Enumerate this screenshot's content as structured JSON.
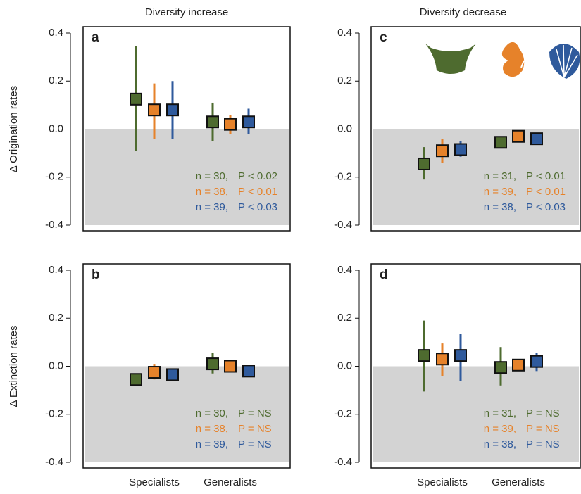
{
  "chart_data": [
    {
      "type": "errorbar",
      "label": "a",
      "title": "Diversity increase",
      "y_label": "Δ Origination rates",
      "ylim": [
        -0.4,
        0.4
      ],
      "yticks": [
        {
          "value": -0.4,
          "label": "-0.4"
        },
        {
          "value": -0.2,
          "label": "-0.2"
        },
        {
          "value": 0,
          "label": "0.0"
        },
        0.2,
        0.4
      ],
      "shade_below_zero": true,
      "series": [
        {
          "color": "#4e6b2f",
          "values": [
            0.125,
            0.03
          ],
          "lower": [
            -0.09,
            -0.05
          ],
          "upper": [
            0.345,
            0.11
          ],
          "annotation_n": "n = 30,",
          "annotation_p": "P < 0.02"
        },
        {
          "color": "#e6822a",
          "values": [
            0.08,
            0.02
          ],
          "lower": [
            -0.04,
            -0.02
          ],
          "upper": [
            0.19,
            0.06
          ],
          "annotation_n": "n = 38,",
          "annotation_p": "P < 0.01"
        },
        {
          "color": "#2f5a9c",
          "values": [
            0.08,
            0.03
          ],
          "lower": [
            -0.04,
            -0.02
          ],
          "upper": [
            0.2,
            0.085
          ],
          "annotation_n": "n = 39,",
          "annotation_p": "P < 0.03"
        }
      ]
    },
    {
      "type": "errorbar",
      "label": "b",
      "y_label": "Δ Extinction rates",
      "categories": [
        "Specialists",
        "Generalists"
      ],
      "ylim": [
        -0.4,
        0.4
      ],
      "yticks": [
        {
          "value": -0.4,
          "label": "-0.4"
        },
        {
          "value": -0.2,
          "label": "-0.2"
        },
        {
          "value": 0,
          "label": "0.0"
        },
        0.2,
        0.4
      ],
      "shade_below_zero": true,
      "series": [
        {
          "color": "#4e6b2f",
          "values": [
            -0.055,
            0.01
          ],
          "lower": [
            -0.065,
            -0.03
          ],
          "upper": [
            -0.045,
            0.055
          ],
          "annotation_n": "n = 30,",
          "annotation_p": "P = NS"
        },
        {
          "color": "#e6822a",
          "values": [
            -0.025,
            0.0
          ],
          "lower": [
            -0.055,
            -0.02
          ],
          "upper": [
            0.01,
            0.02
          ],
          "annotation_n": "n = 38,",
          "annotation_p": "P = NS"
        },
        {
          "color": "#2f5a9c",
          "values": [
            -0.035,
            -0.02
          ],
          "lower": [
            -0.06,
            -0.03
          ],
          "upper": [
            -0.015,
            -0.01
          ],
          "annotation_n": "n = 39,",
          "annotation_p": "P = NS"
        }
      ]
    },
    {
      "type": "errorbar",
      "label": "c",
      "title": "Diversity decrease",
      "ylim": [
        -0.4,
        0.4
      ],
      "yticks": [
        {
          "value": -0.4,
          "label": "-0.4"
        },
        {
          "value": -0.2,
          "label": "-0.2"
        },
        {
          "value": 0,
          "label": "0.0"
        },
        0.2,
        0.4
      ],
      "shade_below_zero": true,
      "series": [
        {
          "color": "#4e6b2f",
          "values": [
            -0.145,
            -0.055
          ],
          "lower": [
            -0.21,
            -0.065
          ],
          "upper": [
            -0.075,
            -0.045
          ],
          "annotation_n": "n = 31,",
          "annotation_p": "P < 0.01"
        },
        {
          "color": "#e6822a",
          "values": [
            -0.09,
            -0.03
          ],
          "lower": [
            -0.14,
            -0.04
          ],
          "upper": [
            -0.04,
            -0.02
          ],
          "annotation_n": "n = 39,",
          "annotation_p": "P < 0.01"
        },
        {
          "color": "#2f5a9c",
          "values": [
            -0.085,
            -0.04
          ],
          "lower": [
            -0.115,
            -0.05
          ],
          "upper": [
            -0.05,
            -0.03
          ],
          "annotation_n": "n = 38,",
          "annotation_p": "P < 0.03"
        }
      ]
    },
    {
      "type": "errorbar",
      "label": "d",
      "categories": [
        "Specialists",
        "Generalists"
      ],
      "ylim": [
        -0.4,
        0.4
      ],
      "yticks": [
        {
          "value": -0.4,
          "label": "-0.4"
        },
        {
          "value": -0.2,
          "label": "-0.2"
        },
        {
          "value": 0,
          "label": "0.0"
        },
        0.2,
        0.4
      ],
      "shade_below_zero": true,
      "series": [
        {
          "color": "#4e6b2f",
          "values": [
            0.045,
            -0.005
          ],
          "lower": [
            -0.105,
            -0.08
          ],
          "upper": [
            0.19,
            0.08
          ],
          "annotation_n": "n = 31,",
          "annotation_p": "P = NS"
        },
        {
          "color": "#e6822a",
          "values": [
            0.03,
            0.005
          ],
          "lower": [
            -0.04,
            -0.02
          ],
          "upper": [
            0.095,
            0.03
          ],
          "annotation_n": "n = 39,",
          "annotation_p": "P = NS"
        },
        {
          "color": "#2f5a9c",
          "values": [
            0.045,
            0.02
          ],
          "lower": [
            -0.06,
            -0.02
          ],
          "upper": [
            0.135,
            0.055
          ],
          "annotation_n": "n = 38,",
          "annotation_p": "P = NS"
        }
      ]
    }
  ]
}
